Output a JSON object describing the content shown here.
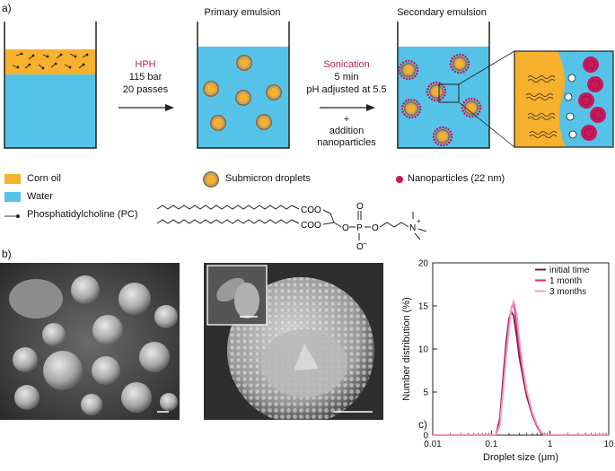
{
  "panel_a": {
    "letter": "a)",
    "beaker2_title": "Primary emulsion",
    "beaker3_title": "Secondary emulsion",
    "step1": {
      "name": "HPH",
      "line1": "115 bar",
      "line2": "20 passes"
    },
    "step2": {
      "name": "Sonication",
      "line1": "5 min",
      "line2": "pH adjusted at 5.5",
      "line3": "+",
      "line4": "addition",
      "line5": "nanoparticles"
    },
    "legend": {
      "corn_oil": "Corn oil",
      "water": "Water",
      "pc": "Phosphatidylcholine (PC)",
      "droplets": "Submicron droplets",
      "nanoparticles": "Nanoparticles (22 nm)"
    },
    "chem": {
      "coo1": "COO",
      "coo2": "COO",
      "o1": "O",
      "o2": "O",
      "o3": "O",
      "o4": "O",
      "p": "P",
      "n": "N",
      "minus": "−",
      "plus": "+"
    },
    "colors": {
      "oil": "#f7b12d",
      "water": "#55c3e8",
      "nanoparticle": "#c8185c",
      "arrow_label": "#b4235f"
    }
  },
  "panel_b": {
    "letter": "b)"
  },
  "panel_c": {
    "letter": "c)"
  },
  "chart_data": {
    "type": "line",
    "xlabel": "Droplet size (μm)",
    "ylabel": "Number distribution (%)",
    "xscale": "log",
    "xlim": [
      0.01,
      10
    ],
    "ylim": [
      0,
      20
    ],
    "xticks": [
      "0.01",
      "0.1",
      "1",
      "10"
    ],
    "yticks": [
      "0",
      "5",
      "10",
      "15",
      "20"
    ],
    "legend_position": "top-right",
    "grid": false,
    "series": [
      {
        "name": "initial time",
        "color": "#7a1c3c",
        "x": [
          0.01,
          0.12,
          0.14,
          0.16,
          0.18,
          0.2,
          0.22,
          0.24,
          0.27,
          0.3,
          0.35,
          0.4,
          0.5,
          0.6,
          0.7,
          0.8,
          10
        ],
        "y": [
          0,
          0,
          2,
          7,
          11,
          13.5,
          14.3,
          13.8,
          11.5,
          9,
          6.5,
          4.5,
          2.3,
          1,
          0.3,
          0,
          0
        ]
      },
      {
        "name": "1 month",
        "color": "#e8277a",
        "x": [
          0.01,
          0.12,
          0.14,
          0.16,
          0.18,
          0.2,
          0.22,
          0.24,
          0.27,
          0.3,
          0.35,
          0.4,
          0.5,
          0.6,
          0.7,
          0.8,
          10
        ],
        "y": [
          0,
          0,
          1.5,
          6,
          10,
          13,
          14.8,
          15.2,
          13,
          10,
          7,
          5,
          2.5,
          1.1,
          0.4,
          0,
          0
        ]
      },
      {
        "name": "3 months",
        "color": "#f39ac6",
        "x": [
          0.01,
          0.12,
          0.14,
          0.16,
          0.18,
          0.2,
          0.22,
          0.24,
          0.27,
          0.3,
          0.35,
          0.4,
          0.5,
          0.6,
          0.7,
          0.8,
          10
        ],
        "y": [
          0,
          0,
          1.2,
          5.5,
          9.5,
          12.5,
          14.8,
          15.6,
          14,
          11,
          7.5,
          5.2,
          2.6,
          1.2,
          0.4,
          0,
          0
        ]
      }
    ]
  }
}
